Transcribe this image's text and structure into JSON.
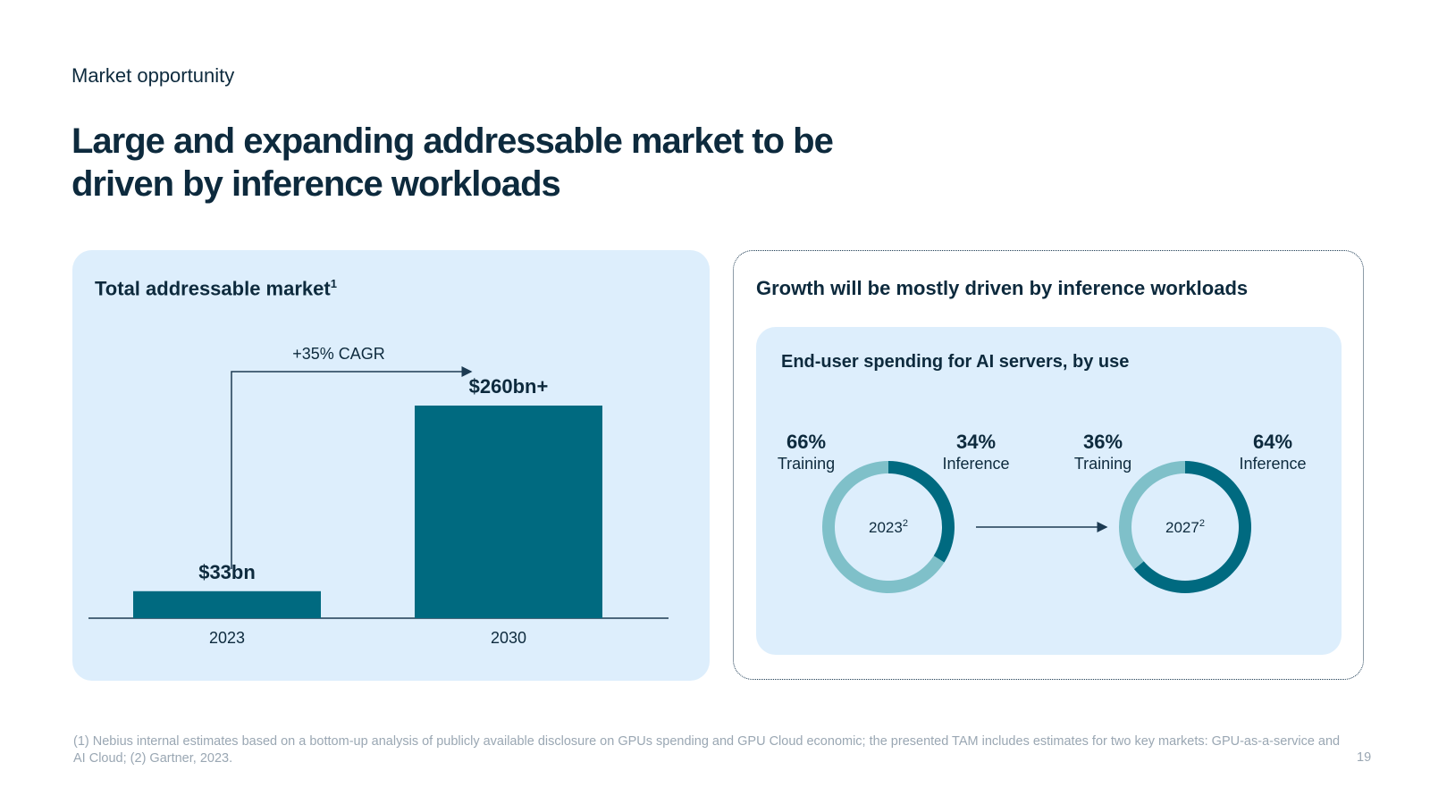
{
  "header": {
    "eyebrow": "Market opportunity",
    "title_line1": "Large and expanding addressable market to be",
    "title_line2": "driven by inference workloads"
  },
  "left_panel": {
    "title": "Total addressable market",
    "title_sup": "1"
  },
  "right_panel": {
    "title": "Growth will be mostly driven by inference workloads",
    "inner_title": "End-user spending for AI servers, by use"
  },
  "chart_data": [
    {
      "type": "bar",
      "title": "Total addressable market",
      "categories": [
        "2023",
        "2030"
      ],
      "values": [
        33,
        260
      ],
      "value_labels": [
        "$33bn",
        "$260bn+"
      ],
      "annotation": "+35% CAGR",
      "colors": {
        "bar": "#006a80",
        "axis": "#1c3a52"
      }
    },
    {
      "type": "pie",
      "title": "End-user spending for AI servers, by use",
      "donuts": [
        {
          "center_label": "2023",
          "center_sup": "2",
          "slices": [
            {
              "name": "Training",
              "value": 66,
              "label": "66%"
            },
            {
              "name": "Inference",
              "value": 34,
              "label": "34%"
            }
          ]
        },
        {
          "center_label": "2027",
          "center_sup": "2",
          "slices": [
            {
              "name": "Training",
              "value": 36,
              "label": "36%"
            },
            {
              "name": "Inference",
              "value": 64,
              "label": "64%"
            }
          ]
        }
      ],
      "colors": {
        "Training": "#7fc0c9",
        "Inference": "#006a80"
      }
    }
  ],
  "footnote": "(1) Nebius internal estimates based on a bottom-up analysis of publicly available disclosure on GPUs spending and GPU Cloud economic; the presented TAM includes estimates for two key markets: GPU-as-a-service and AI Cloud; (2) Gartner, 2023.",
  "page_number": "19"
}
